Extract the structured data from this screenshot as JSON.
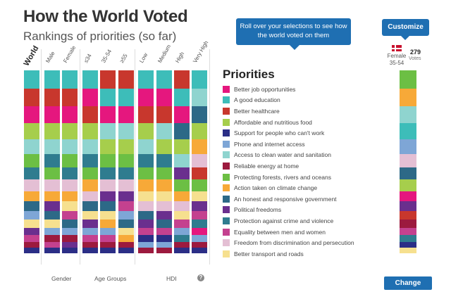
{
  "header": {
    "title": "How the World Voted",
    "subtitle": "Rankings of priorities (so far)"
  },
  "tooltip": {
    "text": "Roll over your selections to see how the world voted on them"
  },
  "customize": {
    "label": "Customize"
  },
  "change": {
    "label": "Change"
  },
  "columns": [
    {
      "label": "World",
      "bold": true
    },
    {
      "label": "Male",
      "bold": false
    },
    {
      "label": "Female",
      "bold": false
    },
    {
      "label": "≤34",
      "bold": false
    },
    {
      "label": "35-54",
      "bold": false
    },
    {
      "label": "≥55",
      "bold": false
    },
    {
      "label": "Low",
      "bold": false
    },
    {
      "label": "Medium",
      "bold": false
    },
    {
      "label": "High",
      "bold": false
    },
    {
      "label": "Very High",
      "bold": false
    }
  ],
  "groups": {
    "gender": "Gender",
    "age": "Age Groups",
    "hdi": "HDI",
    "help": "?"
  },
  "legend": {
    "title": "Priorities",
    "items": [
      {
        "label": "Better job opportunities",
        "color": "#e5177e"
      },
      {
        "label": "A good education",
        "color": "#3dbdb9"
      },
      {
        "label": "Better healthcare",
        "color": "#c8372d"
      },
      {
        "label": "Affordable and nutritious food",
        "color": "#a6ce4c"
      },
      {
        "label": "Support for people who can't work",
        "color": "#2b2e86"
      },
      {
        "label": "Phone and internet access",
        "color": "#7ea6d6"
      },
      {
        "label": "Access to clean water and sanitation",
        "color": "#8fd4cf"
      },
      {
        "label": "Reliable energy at home",
        "color": "#9c1a3e"
      },
      {
        "label": "Protecting forests, rivers and oceans",
        "color": "#6cbf44"
      },
      {
        "label": "Action taken on climate change",
        "color": "#f7a938"
      },
      {
        "label": "An honest and responsive government",
        "color": "#2d6987"
      },
      {
        "label": "Political freedoms",
        "color": "#6a2f8e"
      },
      {
        "label": "Protection against crime and violence",
        "color": "#2f7c8f"
      },
      {
        "label": "Equality between men and women",
        "color": "#c4418f"
      },
      {
        "label": "Freedom from discrimination and persecution",
        "color": "#e4bfd4"
      },
      {
        "label": "Better transport and roads",
        "color": "#f6e08f"
      }
    ]
  },
  "rankings": [
    [
      1,
      2,
      0,
      3,
      6,
      8,
      12,
      14,
      9,
      10,
      5,
      15,
      11,
      13,
      7,
      4
    ],
    [
      1,
      2,
      0,
      3,
      6,
      12,
      8,
      14,
      9,
      11,
      10,
      15,
      5,
      7,
      13,
      4
    ],
    [
      1,
      2,
      0,
      3,
      6,
      8,
      12,
      14,
      9,
      15,
      13,
      10,
      5,
      7,
      11,
      4
    ],
    [
      1,
      0,
      2,
      3,
      6,
      12,
      8,
      9,
      14,
      10,
      15,
      11,
      5,
      13,
      7,
      4
    ],
    [
      2,
      1,
      0,
      6,
      3,
      8,
      12,
      14,
      11,
      10,
      15,
      9,
      5,
      13,
      7,
      4
    ],
    [
      2,
      1,
      0,
      6,
      3,
      8,
      12,
      14,
      11,
      13,
      5,
      10,
      15,
      9,
      7,
      4
    ],
    [
      1,
      0,
      2,
      3,
      6,
      12,
      8,
      9,
      15,
      14,
      10,
      11,
      13,
      4,
      5,
      7
    ],
    [
      1,
      0,
      2,
      6,
      3,
      12,
      8,
      9,
      15,
      14,
      11,
      10,
      13,
      4,
      5,
      7
    ],
    [
      2,
      1,
      0,
      10,
      3,
      6,
      11,
      8,
      9,
      14,
      15,
      13,
      5,
      12,
      7,
      4
    ],
    [
      1,
      6,
      10,
      3,
      9,
      14,
      2,
      8,
      15,
      11,
      13,
      12,
      0,
      5,
      7,
      4
    ]
  ],
  "selection": {
    "label": "Female\n35-54",
    "count": "279",
    "votes": "Votes",
    "ranking": [
      8,
      9,
      6,
      1,
      5,
      14,
      10,
      3,
      0,
      11,
      2,
      7,
      13,
      12,
      4,
      15
    ]
  }
}
